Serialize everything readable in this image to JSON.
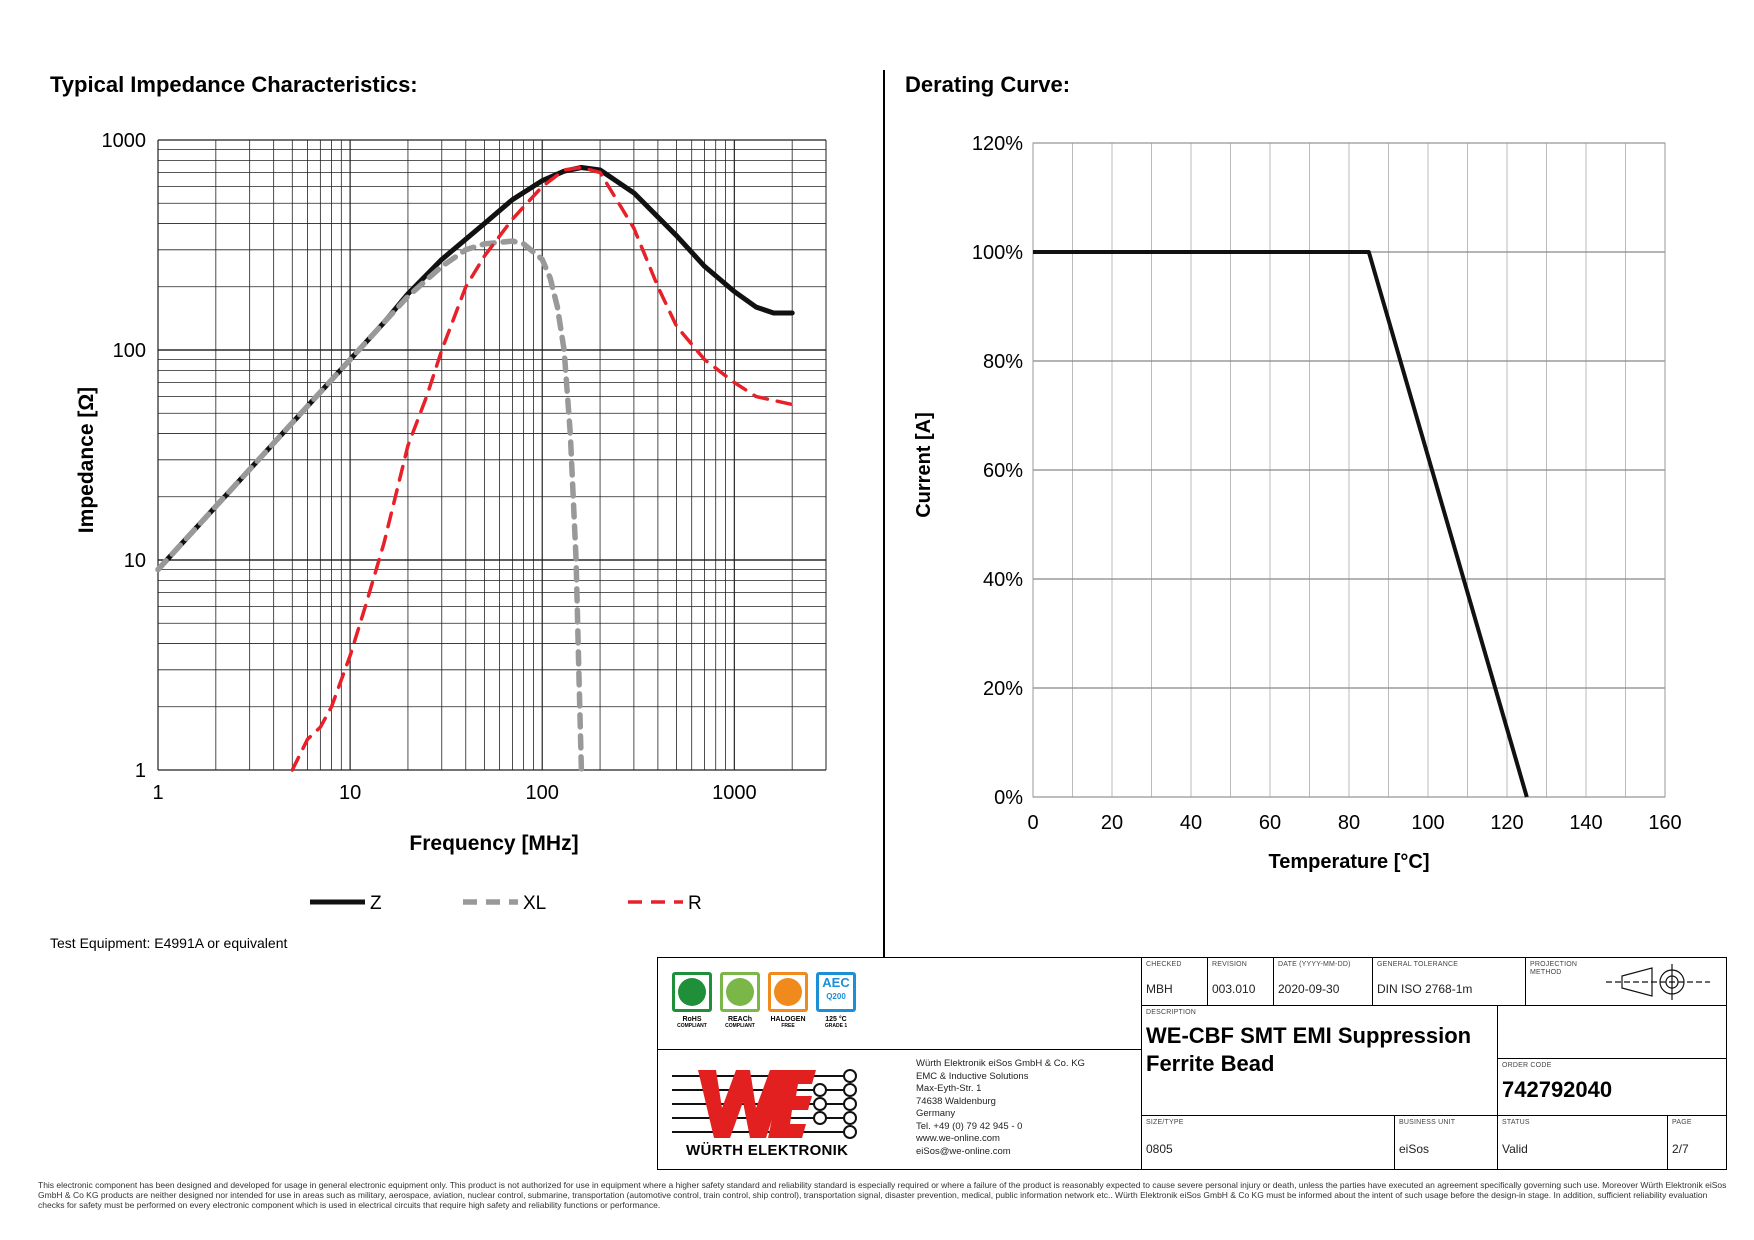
{
  "left_heading": "Typical Impedance Characteristics:",
  "right_heading": "Derating Curve:",
  "test_equipment": "Test Equipment: E4991A or equivalent",
  "chart_data": [
    {
      "type": "line",
      "ylabel": "Impedance [Ω]",
      "xlabel": "Frequency [MHz]",
      "xscale": "log",
      "yscale": "log",
      "xlim": [
        1,
        3000
      ],
      "ylim": [
        1,
        1000
      ],
      "x_ticks": [
        "1",
        "10",
        "100",
        "1000"
      ],
      "y_ticks": [
        "1",
        "10",
        "100",
        "1000"
      ],
      "grid": true,
      "legend": "bottom",
      "series": [
        {
          "name": "Z",
          "color": "#111111",
          "style": "solid",
          "x": [
            1,
            2,
            3,
            5,
            7,
            10,
            15,
            20,
            30,
            50,
            70,
            100,
            130,
            160,
            200,
            300,
            500,
            700,
            1000,
            1300,
            1600,
            2000
          ],
          "y": [
            9,
            18,
            27,
            45,
            63,
            90,
            135,
            185,
            270,
            400,
            520,
            640,
            710,
            740,
            720,
            560,
            350,
            250,
            190,
            160,
            150,
            150
          ]
        },
        {
          "name": "XL",
          "color": "#999999",
          "style": "dashed",
          "x": [
            1,
            2,
            3,
            5,
            7,
            10,
            15,
            20,
            30,
            40,
            50,
            70,
            80,
            100,
            110,
            120,
            130,
            140,
            150,
            155,
            160
          ],
          "y": [
            9,
            18,
            27,
            45,
            63,
            90,
            135,
            180,
            250,
            300,
            320,
            330,
            320,
            270,
            220,
            160,
            100,
            40,
            10,
            3,
            1
          ]
        },
        {
          "name": "R",
          "color": "#e8202a",
          "style": "dashed",
          "x": [
            5,
            6,
            7,
            8,
            10,
            12,
            15,
            20,
            25,
            30,
            40,
            50,
            70,
            100,
            130,
            160,
            200,
            300,
            400,
            500,
            700,
            1000,
            1300,
            2000
          ],
          "y": [
            1,
            1.4,
            1.6,
            2,
            3.5,
            6,
            12,
            35,
            60,
            100,
            200,
            280,
            420,
            600,
            720,
            740,
            700,
            380,
            200,
            130,
            90,
            70,
            60,
            55
          ]
        }
      ]
    },
    {
      "type": "line",
      "ylabel": "Current [A]",
      "xlabel": "Temperature [°C]",
      "xlim": [
        0,
        160
      ],
      "ylim": [
        0,
        120
      ],
      "x_ticks": [
        "0",
        "20",
        "40",
        "60",
        "80",
        "100",
        "120",
        "140",
        "160"
      ],
      "y_ticks": [
        "0%",
        "20%",
        "40%",
        "60%",
        "80%",
        "100%",
        "120%"
      ],
      "grid": true,
      "series": [
        {
          "color": "#111111",
          "x": [
            0,
            85,
            125
          ],
          "y": [
            100,
            100,
            0
          ]
        }
      ]
    }
  ],
  "title_block": {
    "checked_label": "CHECKED",
    "checked": "MBH",
    "revision_label": "REVISION",
    "revision": "003.010",
    "date_label": "DATE (YYYY-MM-DD)",
    "date": "2020-09-30",
    "tolerance_label": "GENERAL TOLERANCE",
    "tolerance": "DIN ISO 2768-1m",
    "projection_label": "PROJECTION METHOD",
    "description_label": "DESCRIPTION",
    "description_line1": "WE-CBF SMT EMI Suppression",
    "description_line2": "Ferrite Bead",
    "order_label": "ORDER CODE",
    "order_code": "742792040",
    "size_label": "SIZE/TYPE",
    "size": "0805",
    "unit_label": "BUSINESS UNIT",
    "unit": "eiSos",
    "status_label": "STATUS",
    "status": "Valid",
    "page_label": "PAGE",
    "page": "2/7",
    "company_name": "WÜRTH ELEKTRONIK",
    "address": [
      "Würth Elektronik eiSos GmbH & Co. KG",
      "EMC & Inductive Solutions",
      "Max-Eyth-Str. 1",
      "74638 Waldenburg",
      "Germany",
      "Tel. +49 (0) 79 42 945 - 0",
      "www.we-online.com",
      "eiSos@we-online.com"
    ],
    "badges": [
      {
        "name": "rohs",
        "text": "RoHS",
        "sub": "COMPLIANT",
        "color": "#1f8f3a"
      },
      {
        "name": "reach",
        "text": "REACh",
        "sub": "COMPLIANT",
        "color": "#7ab648"
      },
      {
        "name": "halogen",
        "text": "HALOGEN",
        "sub": "FREE",
        "color": "#f08a1c"
      },
      {
        "name": "aec",
        "text": "125 °C",
        "sub": "GRADE 1",
        "color": "#1d8fd6",
        "logo": "AEC",
        "logo_sub": "Q200"
      }
    ]
  },
  "disclaimer": "This electronic component has been designed and developed for usage in general electronic equipment only. This product is not authorized for use in equipment where a higher safety standard and reliability standard is especially required or where a failure of the product is reasonably expected to cause severe personal injury or death, unless the parties have executed an agreement specifically governing such use. Moreover Würth Elektronik eiSos GmbH & Co KG products are neither designed nor intended for use in areas such as military, aerospace, aviation, nuclear control, submarine, transportation (automotive control, train control, ship control), transportation signal, disaster prevention, medical, public information network etc.. Würth Elektronik eiSos GmbH & Co KG must be informed about the intent of such usage before the design-in stage. In addition, sufficient reliability evaluation checks for safety must be performed on every electronic component which is used in electrical circuits that require high safety and reliability functions or performance."
}
